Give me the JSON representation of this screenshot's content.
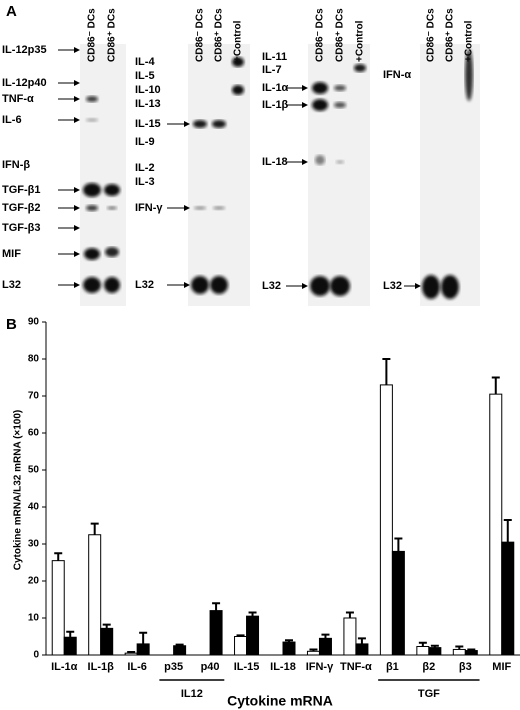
{
  "panel_a": {
    "label": "A",
    "blots": [
      {
        "columns": [
          "CD86⁻ DCs",
          "CD86⁺ DCs"
        ],
        "markers": [
          "IL-12p35",
          "IL-12p40",
          "TNF-α",
          "IL-6",
          "IFN-β",
          "TGF-β1",
          "TGF-β2",
          "TGF-β3",
          "MIF",
          "L32"
        ]
      },
      {
        "columns": [
          "CD86⁻ DCs",
          "CD86⁺ DCs",
          "+Control"
        ],
        "markers": [
          "IL-4",
          "IL-5",
          "IL-10",
          "IL-13",
          "IL-15",
          "IL-9",
          "IL-2",
          "IL-3",
          "IFN-γ",
          "L32"
        ]
      },
      {
        "columns": [
          "CD86⁻ DCs",
          "CD86⁺ DCs",
          "+Control"
        ],
        "markers": [
          "IL-11",
          "IL-7",
          "IL-1α",
          "IL-1β",
          "IL-18",
          "L32"
        ]
      },
      {
        "columns": [
          "CD86⁻ DCs",
          "CD86⁺ DCs",
          "+Control"
        ],
        "markers": [
          "IFN-α",
          "L32"
        ]
      }
    ]
  },
  "chart_data": {
    "type": "bar",
    "panel_label": "B",
    "x_label": "Cytokine mRNA",
    "y_label": "Cytokine mRNA/L32 mRNA (×100)",
    "categories": [
      "IL-1α",
      "IL-1β",
      "IL-6",
      "p35",
      "p40",
      "IL-15",
      "IL-18",
      "IFN-γ",
      "TNF-α",
      "β1",
      "β2",
      "β3",
      "MIF"
    ],
    "category_groups": [
      {
        "label": "IL12",
        "from": "p35",
        "to": "p40"
      },
      {
        "label": "TGF",
        "from": "β1",
        "to": "β3"
      }
    ],
    "series": [
      {
        "color": "#ffffff",
        "values": [
          25.5,
          32.5,
          0.5,
          0,
          0,
          5,
          0,
          1,
          10,
          73,
          2.3,
          1.5,
          70.5
        ],
        "errors": [
          2,
          3,
          0.3,
          0,
          0,
          0.3,
          0,
          0.5,
          1.5,
          7,
          1,
          0.8,
          4.5
        ]
      },
      {
        "color": "#000000",
        "values": [
          4.8,
          7.2,
          3,
          2.5,
          12,
          10.5,
          3.5,
          4.5,
          3,
          28,
          2,
          1.2,
          30.5
        ],
        "errors": [
          1.5,
          1,
          3,
          0.3,
          2,
          1,
          0.5,
          1,
          1.5,
          3.5,
          0.5,
          0.3,
          6
        ]
      }
    ],
    "ylim": [
      0,
      90
    ],
    "yticks": [
      0,
      10,
      20,
      30,
      40,
      50,
      60,
      70,
      80,
      90
    ]
  }
}
